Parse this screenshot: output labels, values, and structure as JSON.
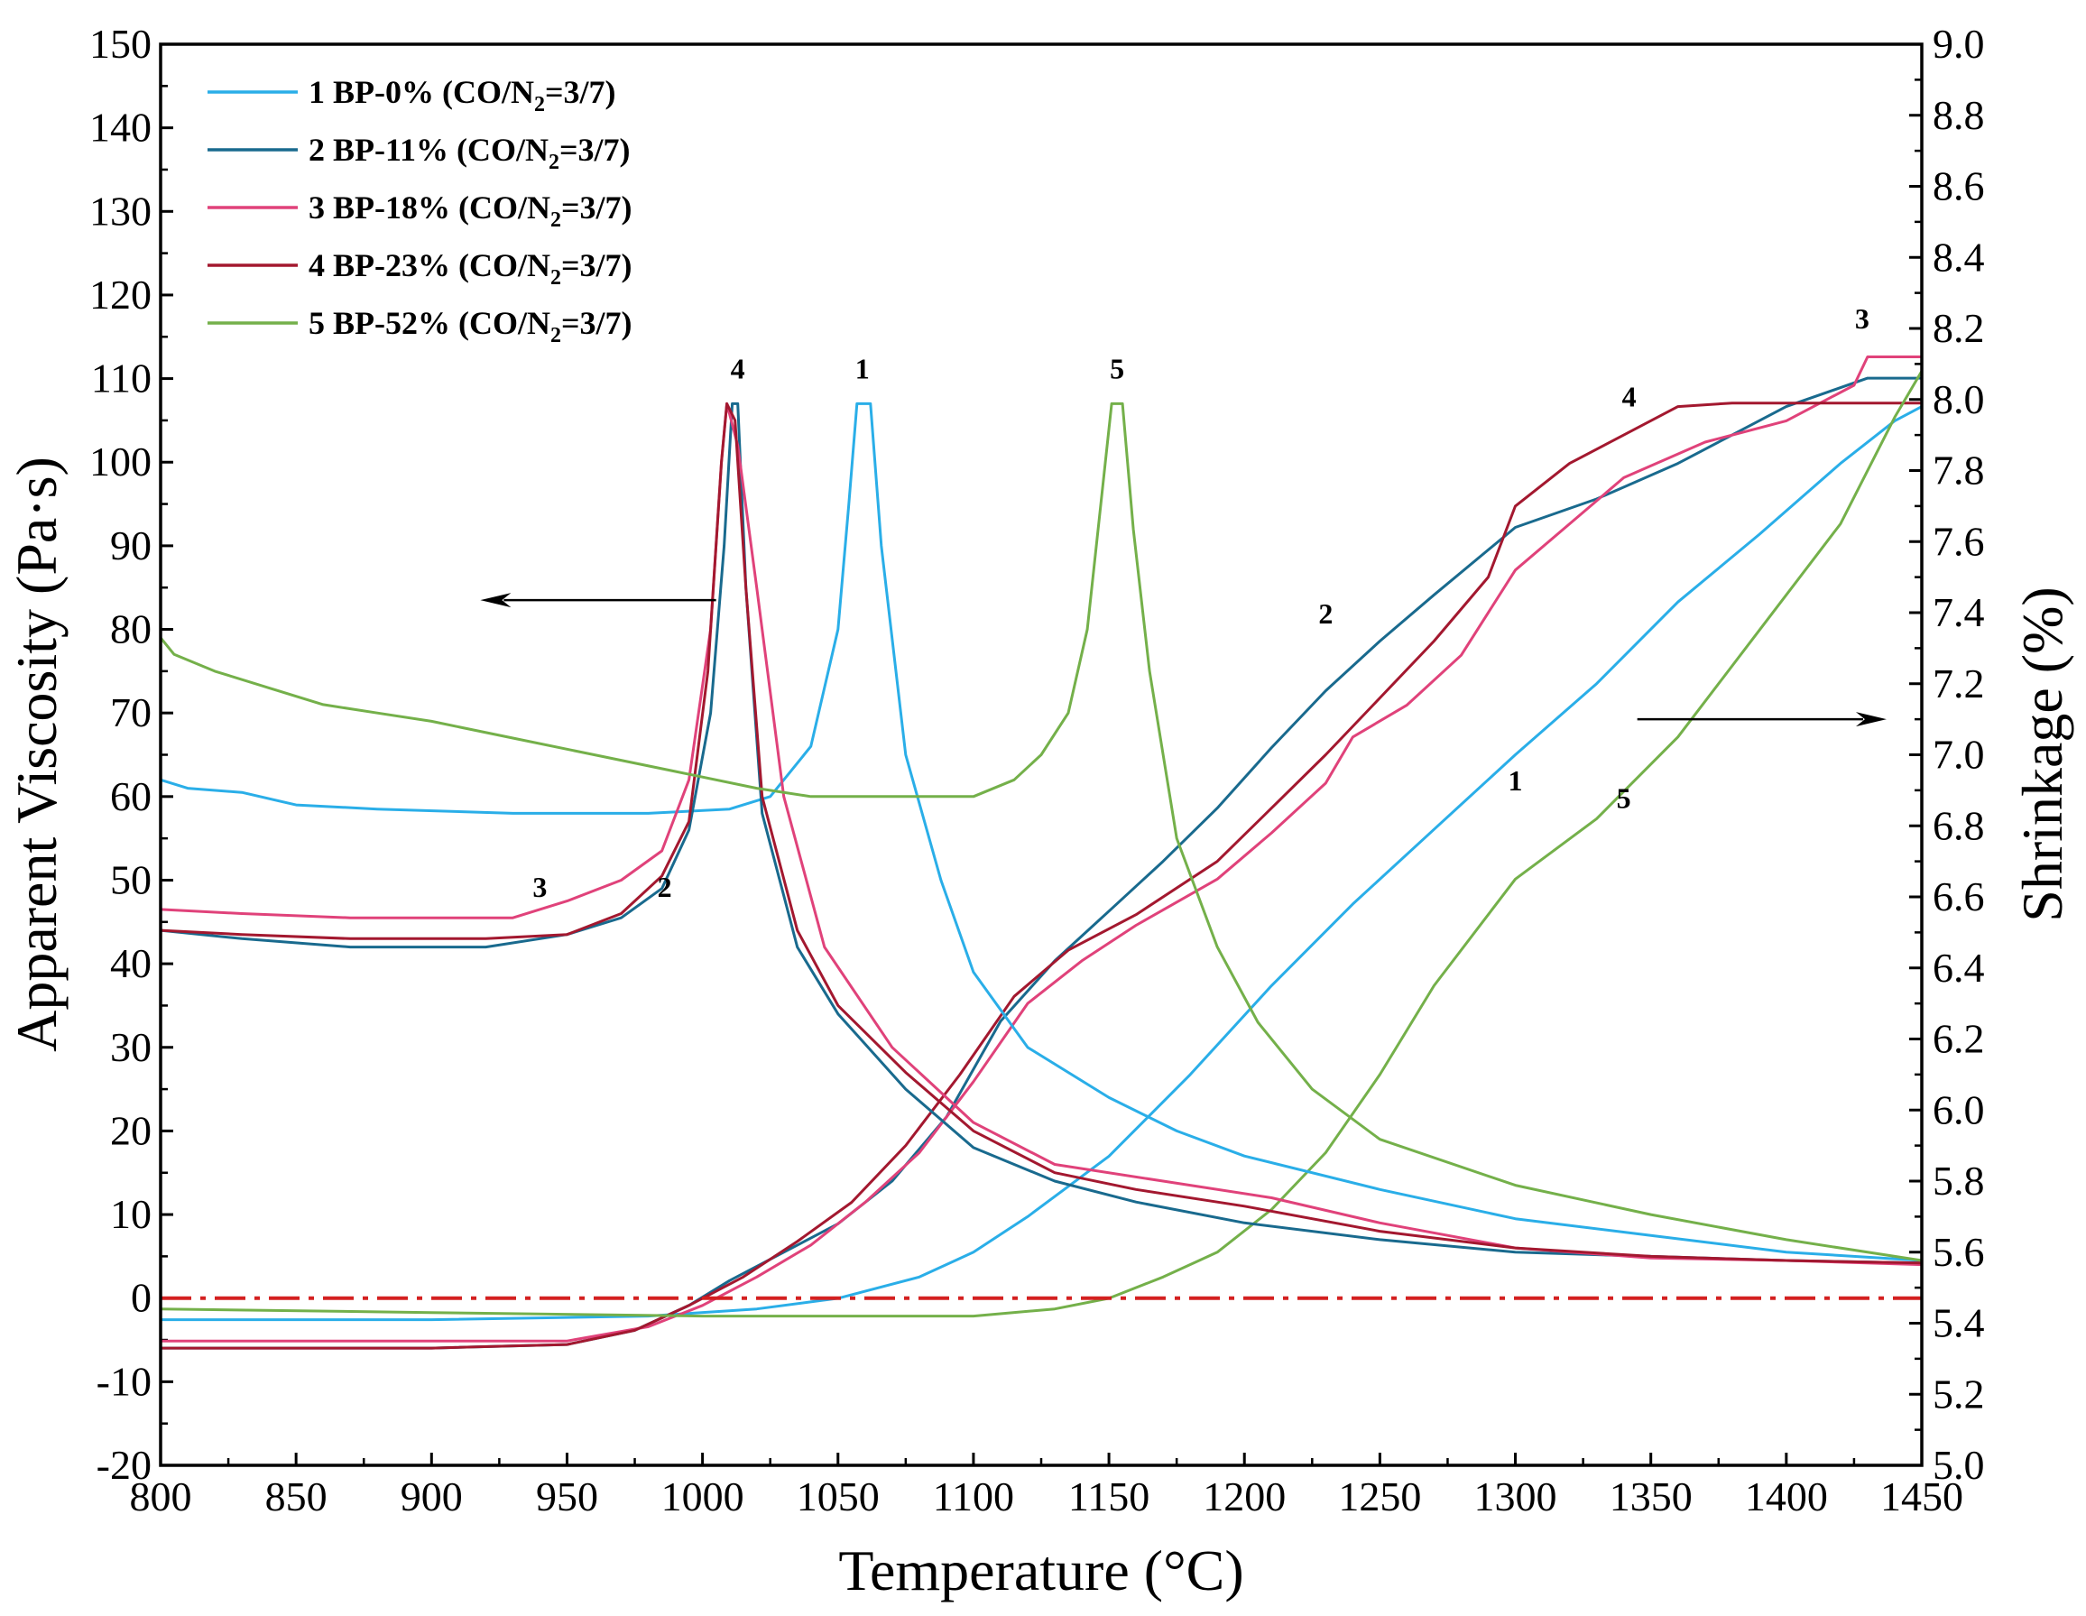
{
  "chart_data": {
    "type": "line",
    "xlabel": "Temperature (°C)",
    "ylabel": "Apparent Viscosity (Pa·s)",
    "y2label": "Shrinkage (%)",
    "xlim": [
      800,
      1450
    ],
    "ylim": [
      -20,
      150
    ],
    "y2lim": [
      5.0,
      9.0
    ],
    "xticks": [
      "800",
      "850",
      "900",
      "950",
      "1000",
      "1050",
      "1100",
      "1150",
      "1200",
      "1250",
      "1300",
      "1350",
      "1400",
      "1450"
    ],
    "yticks": [
      "-20",
      "-10",
      "0",
      "10",
      "20",
      "30",
      "40",
      "50",
      "60",
      "70",
      "80",
      "90",
      "100",
      "110",
      "120",
      "130",
      "140",
      "150"
    ],
    "y2ticks": [
      "5.0",
      "5.2",
      "5.4",
      "5.6",
      "5.8",
      "6.0",
      "6.2",
      "6.4",
      "6.6",
      "6.8",
      "7.0",
      "7.2",
      "7.4",
      "7.6",
      "7.8",
      "8.0",
      "8.2",
      "8.4",
      "8.6",
      "8.8",
      "9.0"
    ],
    "reference_line": {
      "axis": "y",
      "value": 0,
      "style": "dash-dot",
      "color": "#d42020"
    },
    "legend": {
      "position": "top-left",
      "entries": [
        {
          "id": "1",
          "main": "1 BP-0% (CO/N",
          "sub": "2",
          "tail": "=3/7)",
          "color": "#2aaee8"
        },
        {
          "id": "2",
          "main": "2 BP-11% (CO/N",
          "sub": "2",
          "tail": "=3/7)",
          "color": "#196a8e"
        },
        {
          "id": "3",
          "main": "3 BP-18% (CO/N",
          "sub": "2",
          "tail": "=3/7)",
          "color": "#e0427a"
        },
        {
          "id": "4",
          "main": "4 BP-23% (CO/N",
          "sub": "2",
          "tail": "=3/7)",
          "color": "#a3182f"
        },
        {
          "id": "5",
          "main": "5 BP-52% (CO/N",
          "sub": "2",
          "tail": "=3/7)",
          "color": "#74b04a"
        }
      ]
    },
    "annotations": {
      "left_arrow": {
        "from": [
          1005,
          83.5
        ],
        "to": [
          918,
          83.5
        ],
        "axis": "left"
      },
      "right_arrow": {
        "from": [
          1345,
          7.1
        ],
        "to": [
          1437,
          7.1
        ],
        "axis": "right"
      }
    },
    "viscosity_series": [
      {
        "name": "1 BP-0% (CO/N2=3/7)",
        "color": "#2aaee8",
        "axis": "left",
        "points": [
          [
            800,
            62
          ],
          [
            810,
            61
          ],
          [
            830,
            60.5
          ],
          [
            850,
            59
          ],
          [
            880,
            58.5
          ],
          [
            930,
            58
          ],
          [
            980,
            58
          ],
          [
            1010,
            58.5
          ],
          [
            1025,
            60
          ],
          [
            1040,
            66
          ],
          [
            1050,
            80
          ],
          [
            1054,
            95
          ],
          [
            1057,
            107
          ],
          [
            1062,
            107
          ],
          [
            1066,
            90
          ],
          [
            1075,
            65
          ],
          [
            1088,
            50
          ],
          [
            1100,
            39
          ],
          [
            1120,
            30
          ],
          [
            1150,
            24
          ],
          [
            1175,
            20
          ],
          [
            1200,
            17
          ],
          [
            1250,
            13
          ],
          [
            1300,
            9.5
          ],
          [
            1350,
            7.5
          ],
          [
            1400,
            5.5
          ],
          [
            1450,
            4.5
          ]
        ]
      },
      {
        "name": "2 BP-11% (CO/N2=3/7)",
        "color": "#196a8e",
        "axis": "left",
        "points": [
          [
            800,
            44
          ],
          [
            830,
            43
          ],
          [
            870,
            42
          ],
          [
            920,
            42
          ],
          [
            950,
            43.5
          ],
          [
            970,
            45.5
          ],
          [
            985,
            49
          ],
          [
            995,
            56
          ],
          [
            1003,
            70
          ],
          [
            1008,
            90
          ],
          [
            1011,
            107
          ],
          [
            1013,
            107
          ],
          [
            1016,
            85
          ],
          [
            1022,
            58
          ],
          [
            1035,
            42
          ],
          [
            1050,
            34
          ],
          [
            1075,
            25
          ],
          [
            1100,
            18
          ],
          [
            1130,
            14
          ],
          [
            1160,
            11.5
          ],
          [
            1200,
            9
          ],
          [
            1250,
            7
          ],
          [
            1300,
            5.5
          ],
          [
            1350,
            5
          ],
          [
            1400,
            4.5
          ],
          [
            1450,
            4.2
          ]
        ]
      },
      {
        "name": "3 BP-18% (CO/N2=3/7)",
        "color": "#e0427a",
        "axis": "left",
        "points": [
          [
            800,
            46.5
          ],
          [
            830,
            46
          ],
          [
            870,
            45.5
          ],
          [
            930,
            45.5
          ],
          [
            950,
            47.5
          ],
          [
            970,
            50
          ],
          [
            985,
            53.5
          ],
          [
            995,
            62
          ],
          [
            1003,
            80
          ],
          [
            1007,
            100
          ],
          [
            1009,
            107
          ],
          [
            1013,
            102
          ],
          [
            1020,
            85
          ],
          [
            1030,
            60
          ],
          [
            1045,
            42
          ],
          [
            1070,
            30
          ],
          [
            1100,
            21
          ],
          [
            1130,
            16
          ],
          [
            1170,
            14
          ],
          [
            1210,
            12
          ],
          [
            1250,
            9
          ],
          [
            1300,
            6
          ],
          [
            1350,
            4.8
          ],
          [
            1400,
            4.5
          ],
          [
            1450,
            4
          ]
        ]
      },
      {
        "name": "4 BP-23% (CO/N2=3/7)",
        "color": "#a3182f",
        "axis": "left",
        "points": [
          [
            800,
            44
          ],
          [
            830,
            43.5
          ],
          [
            870,
            43
          ],
          [
            920,
            43
          ],
          [
            950,
            43.5
          ],
          [
            970,
            46
          ],
          [
            985,
            50.5
          ],
          [
            995,
            57
          ],
          [
            1002,
            75
          ],
          [
            1007,
            100
          ],
          [
            1009,
            107
          ],
          [
            1012,
            105
          ],
          [
            1016,
            85
          ],
          [
            1022,
            60
          ],
          [
            1035,
            44
          ],
          [
            1050,
            35
          ],
          [
            1075,
            27
          ],
          [
            1100,
            20
          ],
          [
            1130,
            15
          ],
          [
            1160,
            13
          ],
          [
            1200,
            11
          ],
          [
            1250,
            8
          ],
          [
            1300,
            6
          ],
          [
            1350,
            5
          ],
          [
            1400,
            4.5
          ],
          [
            1450,
            4.2
          ]
        ]
      },
      {
        "name": "5 BP-52% (CO/N2=3/7)",
        "color": "#74b04a",
        "axis": "left",
        "points": [
          [
            800,
            79
          ],
          [
            805,
            77
          ],
          [
            820,
            75
          ],
          [
            840,
            73
          ],
          [
            860,
            71
          ],
          [
            880,
            70
          ],
          [
            900,
            69
          ],
          [
            930,
            67
          ],
          [
            960,
            65
          ],
          [
            990,
            63
          ],
          [
            1020,
            61
          ],
          [
            1040,
            60
          ],
          [
            1080,
            60
          ],
          [
            1100,
            60
          ],
          [
            1115,
            62
          ],
          [
            1125,
            65
          ],
          [
            1135,
            70
          ],
          [
            1142,
            80
          ],
          [
            1147,
            95
          ],
          [
            1151,
            107
          ],
          [
            1155,
            107
          ],
          [
            1159,
            92
          ],
          [
            1165,
            75
          ],
          [
            1175,
            55
          ],
          [
            1190,
            42
          ],
          [
            1205,
            33
          ],
          [
            1225,
            25
          ],
          [
            1250,
            19
          ],
          [
            1300,
            13.5
          ],
          [
            1350,
            10
          ],
          [
            1400,
            7
          ],
          [
            1450,
            4.5
          ]
        ]
      }
    ],
    "shrinkage_series": [
      {
        "name": "1",
        "color": "#2aaee8",
        "axis": "right",
        "points": [
          [
            800,
            5.41
          ],
          [
            900,
            5.41
          ],
          [
            980,
            5.42
          ],
          [
            1020,
            5.44
          ],
          [
            1050,
            5.47
          ],
          [
            1080,
            5.53
          ],
          [
            1100,
            5.6
          ],
          [
            1120,
            5.7
          ],
          [
            1150,
            5.87
          ],
          [
            1180,
            6.1
          ],
          [
            1210,
            6.35
          ],
          [
            1240,
            6.58
          ],
          [
            1270,
            6.79
          ],
          [
            1300,
            7.0
          ],
          [
            1330,
            7.2
          ],
          [
            1360,
            7.43
          ],
          [
            1390,
            7.62
          ],
          [
            1420,
            7.82
          ],
          [
            1440,
            7.94
          ],
          [
            1450,
            7.98
          ]
        ]
      },
      {
        "name": "2",
        "color": "#196a8e",
        "axis": "right",
        "points": [
          [
            800,
            5.33
          ],
          [
            850,
            5.33
          ],
          [
            900,
            5.33
          ],
          [
            950,
            5.34
          ],
          [
            975,
            5.38
          ],
          [
            995,
            5.45
          ],
          [
            1010,
            5.52
          ],
          [
            1030,
            5.6
          ],
          [
            1050,
            5.68
          ],
          [
            1070,
            5.8
          ],
          [
            1090,
            5.98
          ],
          [
            1110,
            6.25
          ],
          [
            1130,
            6.42
          ],
          [
            1150,
            6.56
          ],
          [
            1170,
            6.7
          ],
          [
            1190,
            6.85
          ],
          [
            1210,
            7.02
          ],
          [
            1230,
            7.18
          ],
          [
            1250,
            7.32
          ],
          [
            1270,
            7.45
          ],
          [
            1300,
            7.64
          ],
          [
            1330,
            7.72
          ],
          [
            1360,
            7.82
          ],
          [
            1400,
            7.98
          ],
          [
            1430,
            8.06
          ],
          [
            1450,
            8.06
          ]
        ]
      },
      {
        "name": "3",
        "color": "#e0427a",
        "axis": "right",
        "points": [
          [
            800,
            5.35
          ],
          [
            850,
            5.35
          ],
          [
            900,
            5.35
          ],
          [
            950,
            5.35
          ],
          [
            980,
            5.39
          ],
          [
            1000,
            5.45
          ],
          [
            1020,
            5.53
          ],
          [
            1040,
            5.62
          ],
          [
            1060,
            5.74
          ],
          [
            1080,
            5.88
          ],
          [
            1100,
            6.08
          ],
          [
            1120,
            6.3
          ],
          [
            1140,
            6.42
          ],
          [
            1160,
            6.52
          ],
          [
            1190,
            6.65
          ],
          [
            1210,
            6.78
          ],
          [
            1230,
            6.92
          ],
          [
            1240,
            7.05
          ],
          [
            1260,
            7.14
          ],
          [
            1280,
            7.28
          ],
          [
            1300,
            7.52
          ],
          [
            1320,
            7.65
          ],
          [
            1340,
            7.78
          ],
          [
            1370,
            7.88
          ],
          [
            1400,
            7.94
          ],
          [
            1425,
            8.04
          ],
          [
            1430,
            8.12
          ],
          [
            1450,
            8.12
          ]
        ]
      },
      {
        "name": "4",
        "color": "#a3182f",
        "axis": "right",
        "points": [
          [
            800,
            5.33
          ],
          [
            850,
            5.33
          ],
          [
            900,
            5.33
          ],
          [
            950,
            5.34
          ],
          [
            975,
            5.38
          ],
          [
            995,
            5.45
          ],
          [
            1015,
            5.53
          ],
          [
            1035,
            5.63
          ],
          [
            1055,
            5.74
          ],
          [
            1075,
            5.9
          ],
          [
            1095,
            6.1
          ],
          [
            1115,
            6.32
          ],
          [
            1135,
            6.45
          ],
          [
            1160,
            6.55
          ],
          [
            1190,
            6.7
          ],
          [
            1210,
            6.85
          ],
          [
            1230,
            7.0
          ],
          [
            1250,
            7.16
          ],
          [
            1270,
            7.32
          ],
          [
            1290,
            7.5
          ],
          [
            1300,
            7.7
          ],
          [
            1320,
            7.82
          ],
          [
            1340,
            7.9
          ],
          [
            1360,
            7.98
          ],
          [
            1380,
            7.99
          ],
          [
            1400,
            7.99
          ],
          [
            1450,
            7.99
          ]
        ]
      },
      {
        "name": "5",
        "color": "#74b04a",
        "axis": "right",
        "points": [
          [
            800,
            5.44
          ],
          [
            900,
            5.43
          ],
          [
            1000,
            5.42
          ],
          [
            1100,
            5.42
          ],
          [
            1130,
            5.44
          ],
          [
            1150,
            5.47
          ],
          [
            1170,
            5.53
          ],
          [
            1190,
            5.6
          ],
          [
            1210,
            5.72
          ],
          [
            1230,
            5.88
          ],
          [
            1250,
            6.1
          ],
          [
            1270,
            6.35
          ],
          [
            1300,
            6.65
          ],
          [
            1330,
            6.82
          ],
          [
            1360,
            7.05
          ],
          [
            1390,
            7.35
          ],
          [
            1420,
            7.65
          ],
          [
            1440,
            7.95
          ],
          [
            1450,
            8.08
          ]
        ]
      }
    ],
    "curve_labels": [
      {
        "text": "4",
        "x": 1013,
        "y": 110,
        "axis": "left"
      },
      {
        "text": "1",
        "x": 1059,
        "y": 110,
        "axis": "left"
      },
      {
        "text": "5",
        "x": 1153,
        "y": 110,
        "axis": "left"
      },
      {
        "text": "3",
        "x": 940,
        "y": 48,
        "axis": "left"
      },
      {
        "text": "2",
        "x": 986,
        "y": 48,
        "axis": "left"
      },
      {
        "text": "3",
        "x": 1428,
        "y": 8.2,
        "axis": "right"
      },
      {
        "text": "4",
        "x": 1342,
        "y": 7.98,
        "axis": "right"
      },
      {
        "text": "2",
        "x": 1230,
        "y": 7.37,
        "axis": "right"
      },
      {
        "text": "1",
        "x": 1300,
        "y": 6.9,
        "axis": "right"
      },
      {
        "text": "5",
        "x": 1340,
        "y": 6.85,
        "axis": "right"
      }
    ]
  }
}
